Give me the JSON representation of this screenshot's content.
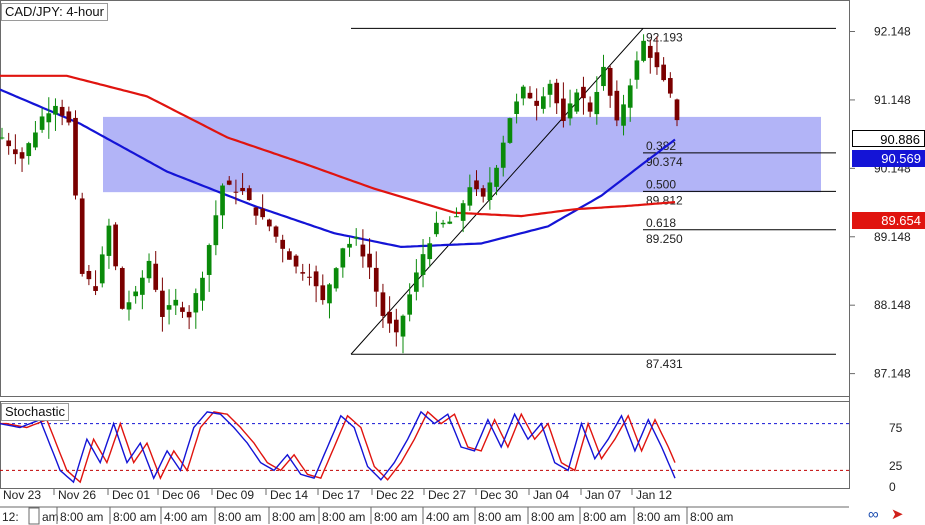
{
  "window": {
    "title": "CAD/JPY: 4-hour",
    "indicator_label": "Stochastic"
  },
  "price_tags": {
    "current": "90.886",
    "ma_blue": "90.569",
    "ma_red": "89.654"
  },
  "icons": {
    "link": "link-icon",
    "arrow": "arrow-right-icon"
  },
  "colors": {
    "zone": "#aeb0f7",
    "ma_blue": "#1414d6",
    "ma_red": "#e0140f",
    "bull_candle": "#0a8a0a",
    "bear_candle": "#7a0000",
    "stoch_k": "#1414d6",
    "stoch_d": "#e0140f",
    "stoch_levels": [
      "#1414d6",
      "#c00000"
    ]
  },
  "chart_data": [
    {
      "type": "candlestick",
      "title": "CAD/JPY: 4-hour",
      "y_axis_ticks": [
        "92.148",
        "91.148",
        "90.148",
        "89.148",
        "88.148",
        "87.148"
      ],
      "ylim": [
        86.85,
        92.55
      ],
      "x_axis_date_labels": [
        "Nov 23",
        "Nov 26",
        "Dec 01",
        "Dec 06",
        "Dec 09",
        "Dec 14",
        "Dec 17",
        "Dec 22",
        "Dec 27",
        "Dec 30",
        "Jan 04",
        "Jan 07",
        "Jan 12"
      ],
      "x_axis_time_labels": [
        "12:",
        "am",
        "8:00 am",
        "8:00 am",
        "4:00 am",
        "8:00 am",
        "8:00 am",
        "8:00 am",
        "8:00 am",
        "4:00 am",
        "8:00 am",
        "8:00 am",
        "8:00 am",
        "8:00 am",
        "8:00 am"
      ],
      "price_anchors": [
        [
          0,
          90.6
        ],
        [
          3,
          90.3
        ],
        [
          6,
          90.9
        ],
        [
          8,
          91.1
        ],
        [
          10,
          90.8
        ],
        [
          12,
          88.6
        ],
        [
          14,
          88.4
        ],
        [
          16,
          89.3
        ],
        [
          18,
          88.1
        ],
        [
          20,
          88.3
        ],
        [
          22,
          88.8
        ],
        [
          24,
          88.0
        ],
        [
          26,
          88.2
        ],
        [
          28,
          88.0
        ],
        [
          30,
          88.6
        ],
        [
          33,
          89.9
        ],
        [
          36,
          89.8
        ],
        [
          38,
          89.5
        ],
        [
          40,
          89.3
        ],
        [
          42,
          89.0
        ],
        [
          44,
          88.7
        ],
        [
          46,
          88.6
        ],
        [
          48,
          88.2
        ],
        [
          51,
          89.0
        ],
        [
          53,
          89.1
        ],
        [
          55,
          88.7
        ],
        [
          57,
          88.0
        ],
        [
          59,
          87.7
        ],
        [
          61,
          88.3
        ],
        [
          63,
          88.9
        ],
        [
          65,
          89.3
        ],
        [
          68,
          89.4
        ],
        [
          70,
          89.9
        ],
        [
          72,
          89.7
        ],
        [
          74,
          90.2
        ],
        [
          76,
          90.9
        ],
        [
          78,
          91.3
        ],
        [
          80,
          91.1
        ],
        [
          82,
          91.4
        ],
        [
          84,
          90.8
        ],
        [
          86,
          91.3
        ],
        [
          88,
          91.0
        ],
        [
          90,
          91.6
        ],
        [
          92,
          90.8
        ],
        [
          94,
          91.4
        ],
        [
          96,
          92.0
        ],
        [
          98,
          91.6
        ],
        [
          100,
          91.2
        ],
        [
          101,
          90.88
        ]
      ],
      "series": [
        {
          "name": "",
          "color": "#1414d6",
          "anchors": [
            [
              0,
              91.3
            ],
            [
              12,
              90.8
            ],
            [
              25,
              90.1
            ],
            [
              38,
              89.6
            ],
            [
              50,
              89.2
            ],
            [
              60,
              89.0
            ],
            [
              72,
              89.05
            ],
            [
              82,
              89.3
            ],
            [
              90,
              89.75
            ],
            [
              96,
              90.2
            ],
            [
              101,
              90.569
            ]
          ]
        },
        {
          "name": "",
          "color": "#e0140f",
          "anchors": [
            [
              0,
              91.5
            ],
            [
              10,
              91.5
            ],
            [
              22,
              91.2
            ],
            [
              34,
              90.6
            ],
            [
              46,
              90.2
            ],
            [
              56,
              89.85
            ],
            [
              68,
              89.5
            ],
            [
              78,
              89.45
            ],
            [
              86,
              89.55
            ],
            [
              94,
              89.6
            ],
            [
              101,
              89.654
            ]
          ]
        }
      ],
      "zone": {
        "y_low": 89.8,
        "y_high": 90.9
      },
      "fibonacci": {
        "high": {
          "label": "92.193",
          "value": 92.193
        },
        "low": {
          "label": "87.431",
          "value": 87.431
        },
        "levels": [
          {
            "ratio": "0.382",
            "price": "90.374",
            "value": 90.374
          },
          {
            "ratio": "0.500",
            "price": "89.812",
            "value": 89.812
          },
          {
            "ratio": "0.618",
            "price": "89.250",
            "value": 89.25
          }
        ]
      }
    },
    {
      "type": "line",
      "title": "Stochastic",
      "y_axis_ticks": [
        "75",
        "25",
        "0"
      ],
      "levels": [
        80,
        20
      ],
      "ylim": [
        0,
        100
      ],
      "k_anchors": [
        [
          0,
          80
        ],
        [
          3,
          75
        ],
        [
          6,
          85
        ],
        [
          9,
          20
        ],
        [
          11,
          5
        ],
        [
          13,
          60
        ],
        [
          15,
          30
        ],
        [
          17,
          80
        ],
        [
          19,
          30
        ],
        [
          21,
          55
        ],
        [
          23,
          10
        ],
        [
          25,
          45
        ],
        [
          27,
          20
        ],
        [
          29,
          75
        ],
        [
          31,
          95
        ],
        [
          33,
          92
        ],
        [
          35,
          75
        ],
        [
          37,
          55
        ],
        [
          39,
          30
        ],
        [
          41,
          20
        ],
        [
          43,
          40
        ],
        [
          45,
          15
        ],
        [
          47,
          10
        ],
        [
          49,
          50
        ],
        [
          51,
          90
        ],
        [
          53,
          75
        ],
        [
          55,
          25
        ],
        [
          57,
          8
        ],
        [
          59,
          30
        ],
        [
          61,
          60
        ],
        [
          63,
          95
        ],
        [
          65,
          80
        ],
        [
          67,
          92
        ],
        [
          69,
          50
        ],
        [
          71,
          45
        ],
        [
          73,
          85
        ],
        [
          75,
          50
        ],
        [
          77,
          92
        ],
        [
          79,
          60
        ],
        [
          81,
          80
        ],
        [
          83,
          30
        ],
        [
          85,
          20
        ],
        [
          87,
          80
        ],
        [
          89,
          35
        ],
        [
          91,
          60
        ],
        [
          93,
          90
        ],
        [
          95,
          45
        ],
        [
          97,
          85
        ],
        [
          99,
          50
        ],
        [
          101,
          10
        ]
      ]
    }
  ]
}
